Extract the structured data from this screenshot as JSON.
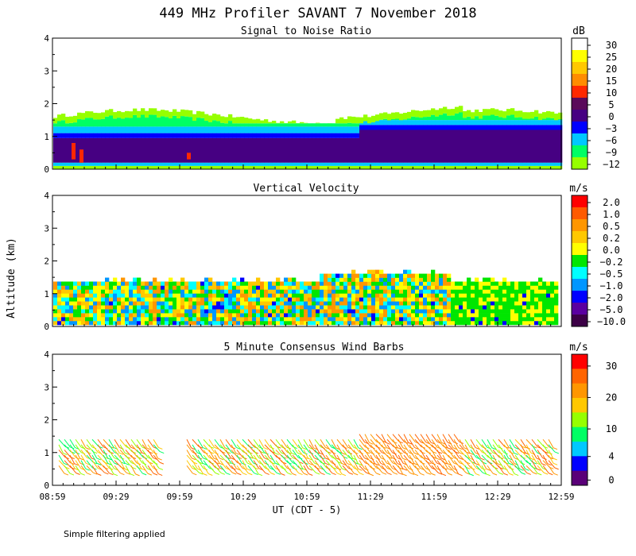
{
  "title": "449 MHz Profiler SAVANT  7 November 2018",
  "x_axis": {
    "label": "UT  (CDT - 5)",
    "ticks": [
      "08:59",
      "09:29",
      "09:59",
      "10:29",
      "10:59",
      "11:29",
      "11:59",
      "12:29",
      "12:59"
    ]
  },
  "y_axis": {
    "label": "Altitude (km)"
  },
  "footnote": "Simple filtering applied",
  "chart_data": [
    {
      "type": "heatmap",
      "title": "Signal to Noise Ratio",
      "units": "dB",
      "ylim": [
        0,
        4
      ],
      "yticks": [
        "0",
        "1",
        "2",
        "3",
        "4"
      ],
      "colorbar": {
        "labels": [
          "30",
          "25",
          "20",
          "15",
          "10",
          "5",
          "0",
          "−3",
          "−6",
          "−9",
          "−12"
        ],
        "colors": [
          "#ffffff",
          "#ffff00",
          "#ffc800",
          "#ff8c00",
          "#ff2800",
          "#5a0a5a",
          "#460082",
          "#0000ff",
          "#00c8ff",
          "#00ff64",
          "#96ff00"
        ]
      }
    },
    {
      "type": "heatmap",
      "title": "Vertical Velocity",
      "units": "m/s",
      "ylim": [
        0,
        4
      ],
      "yticks": [
        "0",
        "1",
        "2",
        "3",
        "4"
      ],
      "colorbar": {
        "labels": [
          "2.0",
          "1.0",
          "0.5",
          "0.2",
          "0.0",
          "−0.2",
          "−0.5",
          "−1.0",
          "−2.0",
          "−5.0",
          "−10.0"
        ],
        "colors": [
          "#ff0000",
          "#ff5a00",
          "#ff9600",
          "#ffc800",
          "#ffff00",
          "#00e600",
          "#00ffff",
          "#0096ff",
          "#0000ff",
          "#5a00a0",
          "#3c0046"
        ]
      }
    },
    {
      "type": "wind-barbs",
      "title": "5 Minute Consensus Wind Barbs",
      "units": "m/s",
      "ylim": [
        0,
        4
      ],
      "yticks": [
        "0",
        "1",
        "2",
        "3",
        "4"
      ],
      "colorbar": {
        "labels": [
          "30",
          "20",
          "10",
          "4",
          "0"
        ],
        "colors": [
          "#ff0000",
          "#ff6400",
          "#ff9600",
          "#ffc800",
          "#96ff00",
          "#00ff64",
          "#00c8ff",
          "#0000ff",
          "#5a0078"
        ]
      }
    }
  ]
}
